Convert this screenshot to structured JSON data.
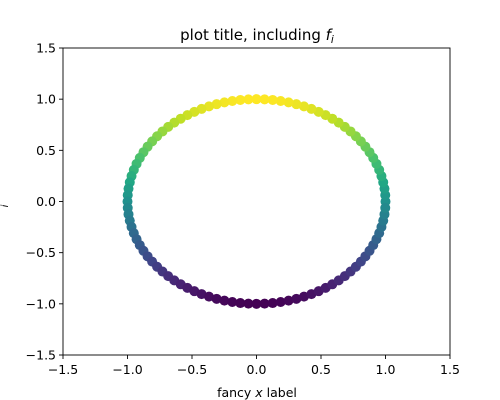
{
  "chart_data": {
    "type": "scatter",
    "title_parts": {
      "text": "plot title, including ",
      "math_base": "f",
      "math_sub": "i"
    },
    "xlabel_parts": {
      "pre": "fancy ",
      "math": "x",
      "post": " label"
    },
    "ylabel": "i",
    "xlim": [
      -1.5,
      1.5
    ],
    "ylim": [
      -1.5,
      1.5
    ],
    "xticks": [
      -1.5,
      -1.0,
      -0.5,
      0.0,
      0.5,
      1.0,
      1.5
    ],
    "yticks": [
      -1.5,
      -1.0,
      -0.5,
      0.0,
      0.5,
      1.0,
      1.5
    ],
    "xtick_labels": [
      "−1.5",
      "−1.0",
      "−0.5",
      "0.0",
      "0.5",
      "1.0",
      "1.5"
    ],
    "ytick_labels": [
      "−1.5",
      "−1.0",
      "−0.5",
      "0.0",
      "0.5",
      "1.0",
      "1.5"
    ],
    "grid": false,
    "colormap": "viridis",
    "color_by": "y",
    "series": [
      {
        "shape": "circle",
        "cx": 0.0,
        "cy": 0.0,
        "radius": 1.0,
        "n_points": 100
      }
    ]
  }
}
